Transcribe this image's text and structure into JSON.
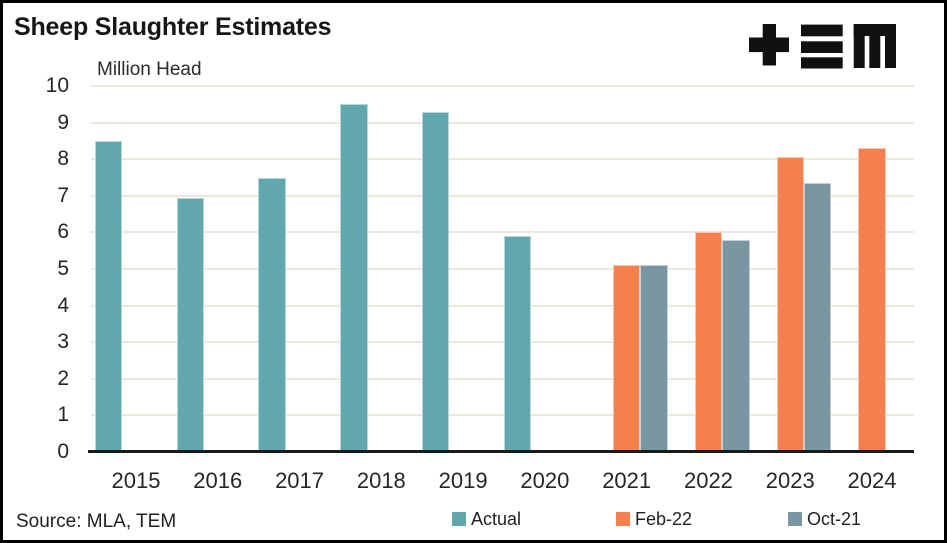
{
  "header": {
    "logo": "TEM"
  },
  "colors": {
    "actual": "#60A8AD",
    "feb22": "#F4804D",
    "oct21": "#7B96A3",
    "gridline": "#ECE9DC",
    "axis": "#1a1a1a",
    "logo": "#111111"
  },
  "chart_data": {
    "type": "bar",
    "title": "Sheep Slaughter Estimates",
    "units_label": "Million Head",
    "categories": [
      "2015",
      "2016",
      "2017",
      "2018",
      "2019",
      "2020",
      "2021",
      "2022",
      "2023",
      "2024"
    ],
    "series": [
      {
        "name": "Actual",
        "color": "#60A8AD",
        "values": [
          8.5,
          6.95,
          7.5,
          9.5,
          9.3,
          5.9,
          null,
          null,
          null,
          null
        ]
      },
      {
        "name": "Feb-22",
        "color": "#F4804D",
        "values": [
          null,
          null,
          null,
          null,
          null,
          null,
          5.1,
          6.0,
          8.05,
          8.3
        ]
      },
      {
        "name": "Oct-21",
        "color": "#7B96A3",
        "values": [
          null,
          null,
          null,
          null,
          null,
          null,
          5.1,
          5.8,
          7.35,
          null
        ]
      }
    ],
    "ylim": [
      0,
      10
    ],
    "ytick_step": 1,
    "yticks": [
      "0",
      "1",
      "2",
      "3",
      "4",
      "5",
      "6",
      "7",
      "8",
      "9",
      "10"
    ],
    "grid": true,
    "legend_position": "bottom",
    "source": "Source: MLA, TEM"
  }
}
